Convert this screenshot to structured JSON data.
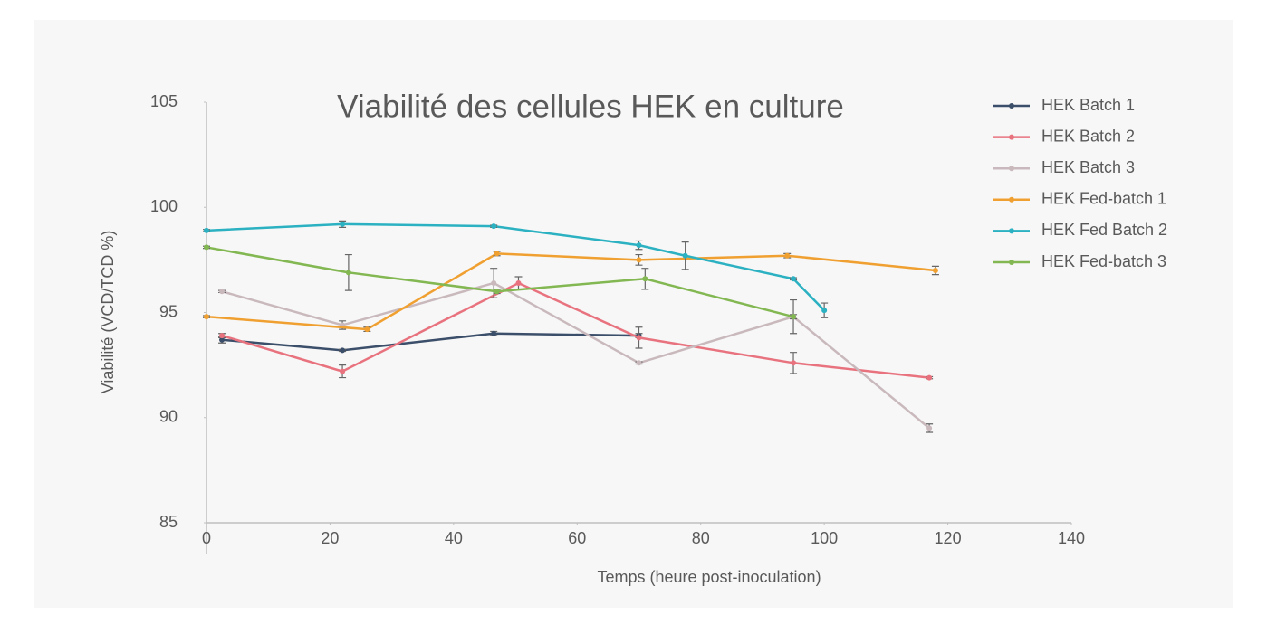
{
  "chart_data": {
    "type": "line",
    "title": "Viabilité des cellules HEK en culture",
    "x_label": "Temps (heure post-inoculation)",
    "y_label": "Viabilité (VCD/TCD %)",
    "xlim": [
      0,
      140
    ],
    "xticks": [
      0,
      20,
      40,
      60,
      80,
      100,
      120,
      140
    ],
    "ylim": [
      85,
      105
    ],
    "yticks": [
      85,
      90,
      95,
      100,
      105
    ],
    "legend": "right",
    "series": [
      {
        "name": "HEK Batch 1",
        "color": "#3b4e6a",
        "x": [
          2.5,
          22,
          46.5,
          70
        ],
        "values": [
          93.7,
          93.2,
          94.0,
          93.9
        ],
        "errors": [
          0.15,
          0.05,
          0.1,
          0.1
        ]
      },
      {
        "name": "HEK Batch 2",
        "color": "#e8737f",
        "x": [
          2.5,
          22,
          50.5,
          70,
          95,
          117
        ],
        "values": [
          93.9,
          92.2,
          96.4,
          93.8,
          92.6,
          91.9
        ],
        "errors": [
          0.1,
          0.3,
          0.3,
          0.5,
          0.5,
          0.05
        ]
      },
      {
        "name": "HEK Batch 3",
        "color": "#c9b9bd",
        "x": [
          2.5,
          22,
          46.5,
          70,
          95,
          117
        ],
        "values": [
          96.0,
          94.4,
          96.4,
          92.6,
          94.8,
          89.5
        ],
        "errors": [
          0.05,
          0.2,
          0.7,
          0.05,
          0.8,
          0.2
        ]
      },
      {
        "name": "HEK Fed-batch 1",
        "color": "#f0a030",
        "x": [
          0,
          26,
          47,
          70,
          94,
          118
        ],
        "values": [
          94.8,
          94.2,
          97.8,
          97.5,
          97.7,
          97.0
        ],
        "errors": [
          0.05,
          0.1,
          0.1,
          0.25,
          0.1,
          0.2
        ]
      },
      {
        "name": "HEK Fed Batch 2",
        "color": "#2bb1c1",
        "x": [
          0,
          22,
          46.5,
          70,
          77.5,
          95,
          100
        ],
        "values": [
          98.9,
          99.2,
          99.1,
          98.2,
          97.7,
          96.6,
          95.1
        ],
        "errors": [
          0.05,
          0.15,
          0.05,
          0.2,
          0.65,
          0.05,
          0.35
        ]
      },
      {
        "name": "HEK Fed-batch 3",
        "color": "#82b752",
        "x": [
          0,
          23,
          47,
          71,
          95
        ],
        "values": [
          98.1,
          96.9,
          96.0,
          96.6,
          94.8
        ],
        "errors": [
          0.05,
          0.85,
          0.1,
          0.5,
          0.1
        ]
      }
    ]
  }
}
